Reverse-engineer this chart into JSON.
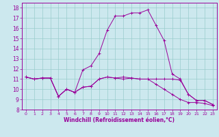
{
  "xlabel": "Windchill (Refroidissement éolien,°C)",
  "bg_color": "#cce8ee",
  "line_color": "#990099",
  "grid_color": "#99cccc",
  "ylim": [
    8,
    18.5
  ],
  "xlim": [
    -0.5,
    23.5
  ],
  "yticks": [
    8,
    9,
    10,
    11,
    12,
    13,
    14,
    15,
    16,
    17,
    18
  ],
  "xticks": [
    0,
    1,
    2,
    3,
    4,
    5,
    6,
    7,
    8,
    9,
    10,
    11,
    12,
    13,
    14,
    15,
    16,
    17,
    18,
    19,
    20,
    21,
    22,
    23
  ],
  "line1_x": [
    0,
    1,
    2,
    3,
    4,
    5,
    6,
    7,
    8,
    9,
    10,
    11,
    12,
    13,
    14,
    15,
    16,
    17,
    18,
    19,
    20,
    21,
    22,
    23
  ],
  "line1_y": [
    11.2,
    11.0,
    11.1,
    11.1,
    9.3,
    10.0,
    9.7,
    10.2,
    10.3,
    11.0,
    11.2,
    11.1,
    11.0,
    11.1,
    11.0,
    11.0,
    11.0,
    11.0,
    11.0,
    10.9,
    9.5,
    8.9,
    8.9,
    8.5
  ],
  "line2_x": [
    0,
    1,
    2,
    3,
    4,
    5,
    6,
    7,
    8,
    9,
    10,
    11,
    12,
    13,
    14,
    15,
    16,
    17,
    18,
    19,
    20,
    21,
    22,
    23
  ],
  "line2_y": [
    11.2,
    11.0,
    11.1,
    11.1,
    9.3,
    10.0,
    9.7,
    11.9,
    12.3,
    13.5,
    15.8,
    17.2,
    17.2,
    17.5,
    17.5,
    17.8,
    16.3,
    14.8,
    11.5,
    11.0,
    9.5,
    8.9,
    8.9,
    8.5
  ],
  "line3_x": [
    0,
    1,
    2,
    3,
    4,
    5,
    6,
    7,
    8,
    9,
    10,
    11,
    12,
    13,
    14,
    15,
    16,
    17,
    18,
    19,
    20,
    21,
    22,
    23
  ],
  "line3_y": [
    11.2,
    11.0,
    11.1,
    11.1,
    9.3,
    10.0,
    9.7,
    10.2,
    10.3,
    11.0,
    11.2,
    11.1,
    11.2,
    11.1,
    11.0,
    11.0,
    10.5,
    10.0,
    9.5,
    9.0,
    8.7,
    8.7,
    8.6,
    8.4
  ]
}
